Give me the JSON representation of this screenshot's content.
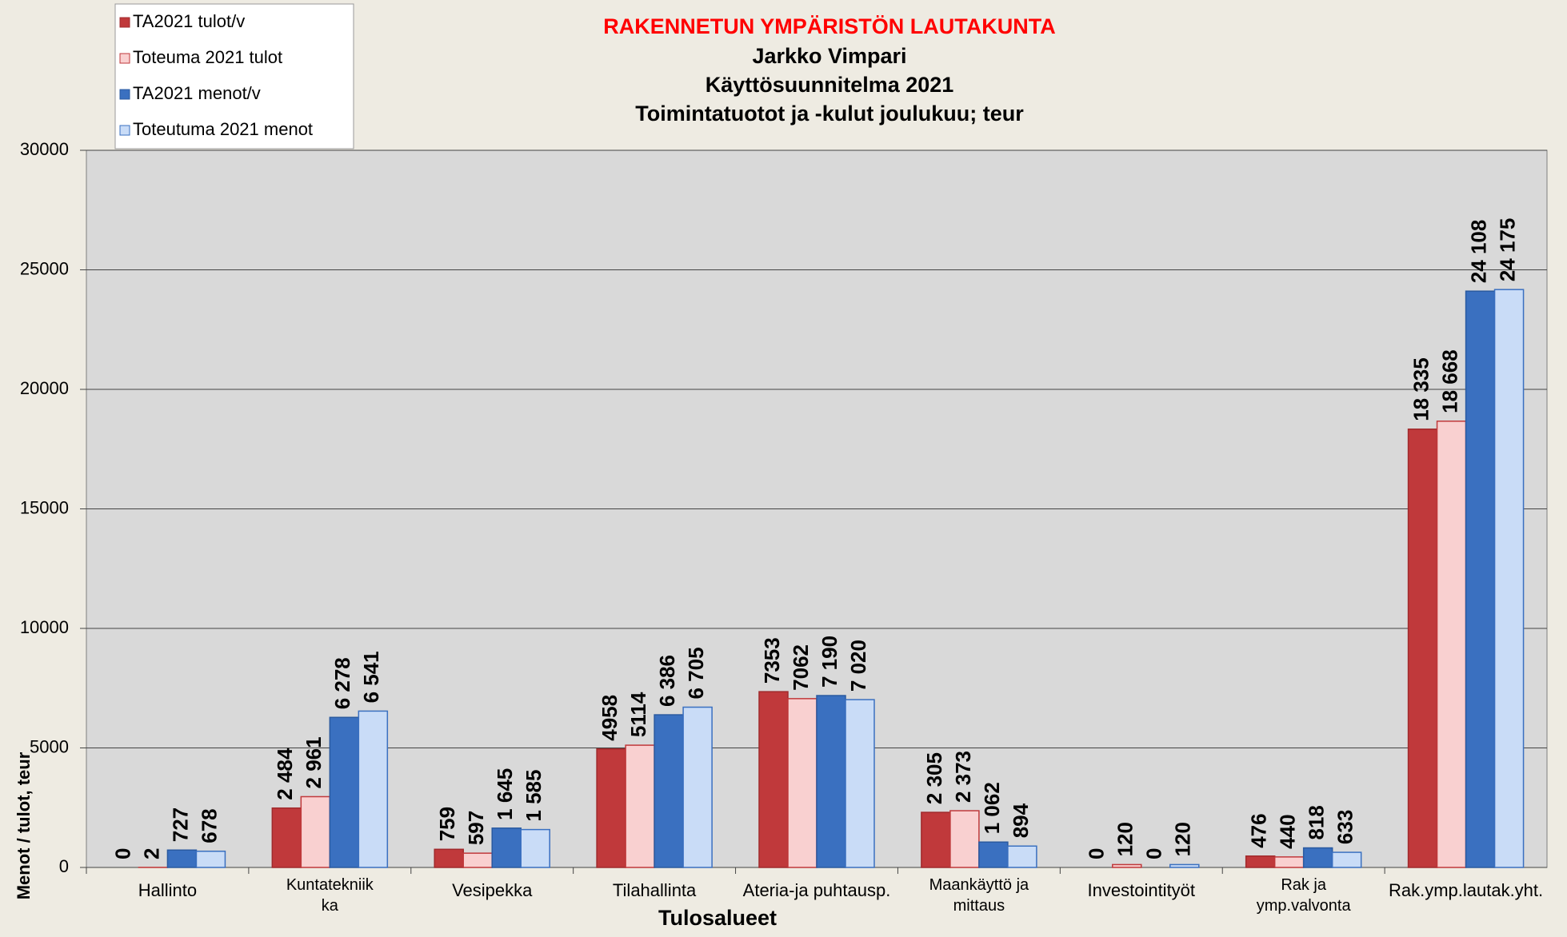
{
  "chart_data": {
    "type": "bar",
    "title": "RAKENNETUN YMPÄRISTÖN LAUTAKUNTA",
    "subtitles": [
      "Jarkko Vimpari",
      "Käyttösuunnitelma 2021",
      "Toimintatuotot ja -kulut joulukuu; teur"
    ],
    "x_label": "Tulosalueet",
    "y_label": "Menot / tulot, teur",
    "categories": [
      "Hallinto",
      "Kuntatekniik\nka",
      "Vesipekka",
      "Tilahallinta",
      "Ateria-ja puhtausp.",
      "Maankäyttö ja\nmittaus",
      "Investointityöt",
      "Rak ja\nymp.valvonta",
      "Rak.ymp.lautak.yht."
    ],
    "series": [
      {
        "name": "TA2021 tulot/v",
        "color": "#c0393b",
        "border": "#a02a2c",
        "values": [
          0,
          2484,
          759,
          4958,
          7353,
          2305,
          0,
          476,
          18335
        ],
        "value_labels": [
          "0",
          "2 484",
          "759",
          "4958",
          "7353",
          "2 305",
          "0",
          "476",
          "18 335"
        ]
      },
      {
        "name": "Toteuma 2021 tulot",
        "color": "#f9d0d0",
        "border": "#c0393b",
        "values": [
          2,
          2961,
          597,
          5114,
          7062,
          2373,
          120,
          440,
          18668
        ],
        "value_labels": [
          "2",
          "2 961",
          "597",
          "5114",
          "7062",
          "2 373",
          "120",
          "440",
          "18 668"
        ]
      },
      {
        "name": "TA2021 menot/v",
        "color": "#3a70c0",
        "border": "#2a5aa0",
        "values": [
          727,
          6278,
          1645,
          6386,
          7190,
          1062,
          0,
          818,
          24108
        ],
        "value_labels": [
          "727",
          "6 278",
          "1 645",
          "6 386",
          "7 190",
          "1 062",
          "0",
          "818",
          "24 108"
        ]
      },
      {
        "name": "Toteutuma 2021 menot",
        "color": "#c9dcf7",
        "border": "#3a70c0",
        "values": [
          678,
          6541,
          1585,
          6705,
          7020,
          894,
          120,
          633,
          24175
        ],
        "value_labels": [
          "678",
          "6 541",
          "1 585",
          "6 705",
          "7 020",
          "894",
          "120",
          "633",
          "24 175"
        ]
      }
    ],
    "ylim": [
      0,
      30000
    ],
    "yticks": [
      0,
      5000,
      10000,
      15000,
      20000,
      25000,
      30000
    ],
    "grid": true,
    "legend": "top-left"
  }
}
